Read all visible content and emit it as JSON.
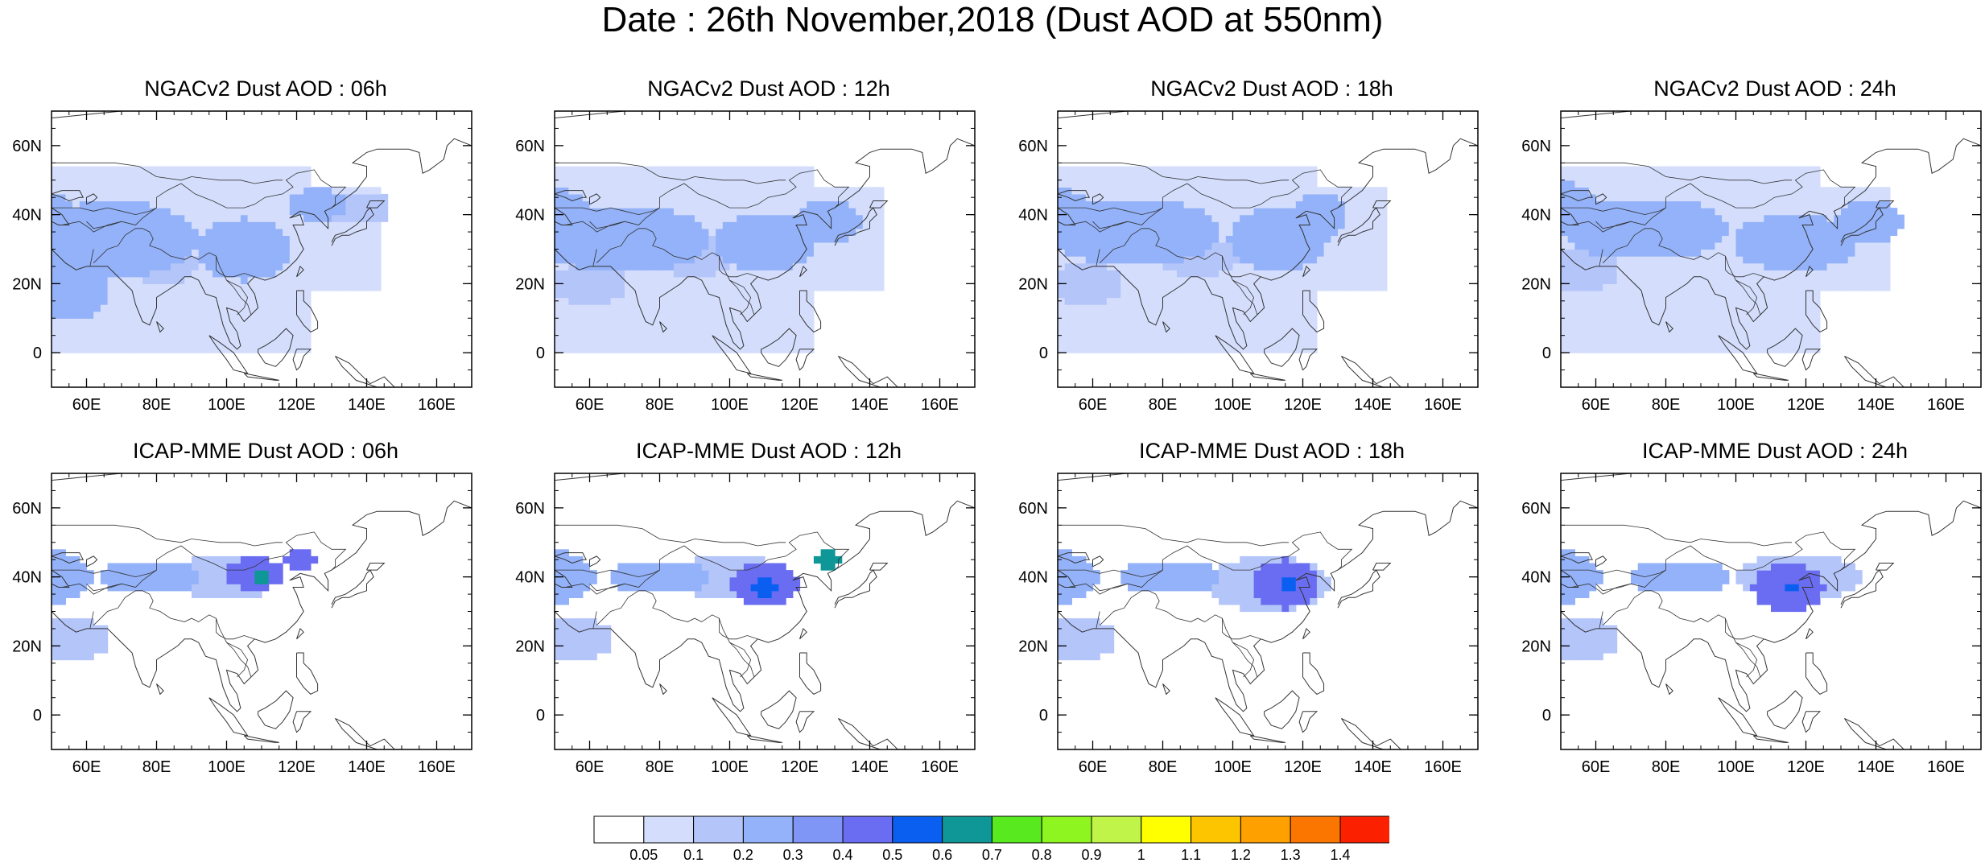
{
  "title": "Date : 26th November,2018 (Dust AOD at 550nm)",
  "panels": [
    {
      "title": "NGACv2 Dust AOD : 06h",
      "model": "NGACv2",
      "hour": "06h",
      "field": {
        "background_level": 1,
        "blobs": [
          [
            45,
            38,
            14,
            9,
            3
          ],
          [
            68,
            33,
            24,
            11,
            3
          ],
          [
            105,
            30,
            14,
            9,
            3
          ],
          [
            126,
            43,
            8,
            5,
            3
          ],
          [
            56,
            18,
            10,
            9,
            3
          ],
          [
            82,
            26,
            10,
            6,
            2
          ],
          [
            138,
            42,
            9,
            5,
            2
          ]
        ]
      }
    },
    {
      "title": "NGACv2 Dust AOD : 12h",
      "model": "NGACv2",
      "hour": "12h",
      "field": {
        "background_level": 1,
        "blobs": [
          [
            47,
            40,
            14,
            8,
            3
          ],
          [
            70,
            33,
            24,
            10,
            3
          ],
          [
            110,
            32,
            14,
            9,
            3
          ],
          [
            128,
            38,
            10,
            6,
            3
          ],
          [
            60,
            20,
            10,
            7,
            2
          ],
          [
            90,
            28,
            12,
            6,
            2
          ]
        ]
      }
    },
    {
      "title": "NGACv2 Dust AOD : 18h",
      "model": "NGACv2",
      "hour": "18h",
      "field": {
        "background_level": 1,
        "blobs": [
          [
            47,
            40,
            14,
            8,
            3
          ],
          [
            72,
            35,
            24,
            10,
            3
          ],
          [
            113,
            33,
            14,
            9,
            3
          ],
          [
            125,
            40,
            8,
            6,
            3
          ],
          [
            58,
            20,
            10,
            7,
            2
          ],
          [
            90,
            28,
            12,
            6,
            2
          ]
        ]
      }
    },
    {
      "title": "NGACv2 Dust AOD : 24h",
      "model": "NGACv2",
      "hour": "24h",
      "field": {
        "background_level": 1,
        "blobs": [
          [
            47,
            42,
            14,
            8,
            3
          ],
          [
            74,
            36,
            24,
            9,
            3
          ],
          [
            117,
            32,
            18,
            8,
            3
          ],
          [
            138,
            38,
            10,
            6,
            3
          ],
          [
            56,
            24,
            10,
            7,
            2
          ]
        ]
      }
    },
    {
      "title": "ICAP-MME Dust AOD : 06h",
      "model": "ICAP-MME",
      "hour": "06h",
      "field": {
        "background_level": 0,
        "blobs": [
          [
            48,
            40,
            14,
            8,
            3
          ],
          [
            78,
            40,
            14,
            5,
            3
          ],
          [
            108,
            41,
            8,
            5,
            5
          ],
          [
            110,
            40,
            3,
            3,
            7
          ],
          [
            121,
            45,
            4,
            3,
            5
          ],
          [
            56,
            22,
            10,
            7,
            2
          ],
          [
            100,
            40,
            14,
            7,
            2
          ]
        ]
      }
    },
    {
      "title": "ICAP-MME Dust AOD : 12h",
      "model": "ICAP-MME",
      "hour": "12h",
      "field": {
        "background_level": 0,
        "blobs": [
          [
            48,
            40,
            14,
            8,
            3
          ],
          [
            80,
            40,
            14,
            5,
            3
          ],
          [
            110,
            38,
            10,
            6,
            5
          ],
          [
            110,
            37,
            3,
            3,
            6
          ],
          [
            128,
            45,
            3,
            3,
            7
          ],
          [
            56,
            22,
            10,
            7,
            2
          ],
          [
            100,
            40,
            14,
            7,
            2
          ]
        ]
      }
    },
    {
      "title": "ICAP-MME Dust AOD : 18h",
      "model": "ICAP-MME",
      "hour": "18h",
      "field": {
        "background_level": 0,
        "blobs": [
          [
            48,
            40,
            14,
            8,
            3
          ],
          [
            82,
            40,
            14,
            5,
            3
          ],
          [
            115,
            38,
            10,
            7,
            5
          ],
          [
            116,
            38,
            3,
            3,
            6
          ],
          [
            56,
            22,
            10,
            7,
            2
          ],
          [
            110,
            38,
            18,
            8,
            2
          ]
        ]
      }
    },
    {
      "title": "ICAP-MME Dust AOD : 24h",
      "model": "ICAP-MME",
      "hour": "24h",
      "field": {
        "background_level": 0,
        "blobs": [
          [
            48,
            40,
            14,
            8,
            3
          ],
          [
            84,
            40,
            14,
            5,
            3
          ],
          [
            115,
            37,
            10,
            7,
            5
          ],
          [
            116,
            37,
            2,
            2,
            6
          ],
          [
            56,
            22,
            10,
            7,
            2
          ],
          [
            118,
            40,
            18,
            7,
            2
          ]
        ]
      }
    }
  ],
  "x_axis": {
    "min": 50,
    "max": 170,
    "ticks": [
      60,
      80,
      100,
      120,
      140,
      160
    ],
    "tick_labels": [
      "60E",
      "80E",
      "100E",
      "120E",
      "140E",
      "160E"
    ]
  },
  "y_axis": {
    "min": -10,
    "max": 70,
    "ticks": [
      0,
      20,
      40,
      60
    ],
    "tick_labels": [
      "0",
      "20N",
      "40N",
      "60N"
    ]
  },
  "colorbar": {
    "levels": [
      "0.05",
      "0.1",
      "0.2",
      "0.3",
      "0.4",
      "0.5",
      "0.6",
      "0.7",
      "0.8",
      "0.9",
      "1",
      "1.1",
      "1.2",
      "1.3",
      "1.4"
    ],
    "colors": [
      "#ffffff",
      "#d4defc",
      "#b4c5fa",
      "#93b2f9",
      "#8096f7",
      "#6a6df1",
      "#0a5ff0",
      "#0f9696",
      "#58ea1e",
      "#8ef520",
      "#c0f448",
      "#ffff00",
      "#fdc400",
      "#fea000",
      "#fb7600",
      "#fa2000"
    ]
  }
}
